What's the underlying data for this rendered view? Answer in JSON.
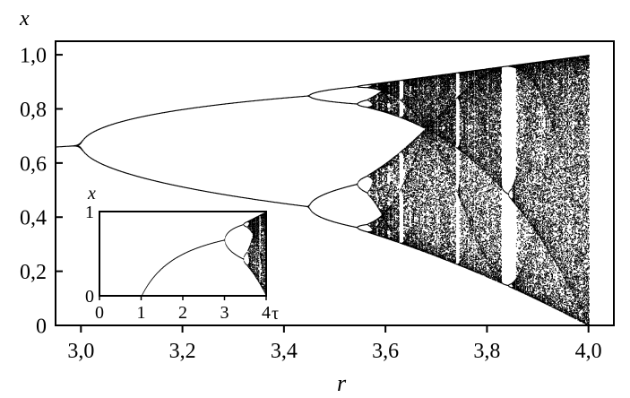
{
  "chart_data": [
    {
      "type": "scatter",
      "title": "",
      "xlabel": "r",
      "ylabel": "x",
      "xlim": [
        2.95,
        4.05
      ],
      "ylim": [
        0,
        1.05
      ],
      "xticks": [
        {
          "v": 3.0,
          "label": "3,0"
        },
        {
          "v": 3.2,
          "label": "3,2"
        },
        {
          "v": 3.4,
          "label": "3,4"
        },
        {
          "v": 3.6,
          "label": "3,6"
        },
        {
          "v": 3.8,
          "label": "3,8"
        },
        {
          "v": 4.0,
          "label": "4,0"
        }
      ],
      "yticks": [
        {
          "v": 0,
          "label": "0"
        },
        {
          "v": 0.2,
          "label": "0,2"
        },
        {
          "v": 0.4,
          "label": "0,4"
        },
        {
          "v": 0.6,
          "label": "0,6"
        },
        {
          "v": 0.8,
          "label": "0,8"
        },
        {
          "v": 1.0,
          "label": "1,0"
        }
      ],
      "description_points": {
        "fixed_point_branch": [
          [
            2.95,
            0.661
          ],
          [
            3.0,
            0.667
          ]
        ],
        "period2_upper": [
          [
            3.0,
            0.667
          ],
          [
            3.2,
            0.799
          ],
          [
            3.449,
            0.84
          ]
        ],
        "period2_lower": [
          [
            3.0,
            0.667
          ],
          [
            3.2,
            0.513
          ],
          [
            3.449,
            0.44
          ]
        ],
        "chaos_band": [
          [
            3.57,
            0.36,
            0.89
          ],
          [
            4.0,
            0.0,
            1.0
          ]
        ]
      },
      "grid": false
    },
    {
      "type": "scatter",
      "title": "",
      "xlabel": "τ",
      "ylabel": "x",
      "xlim": [
        0,
        4
      ],
      "ylim": [
        0,
        1
      ],
      "xticks": [
        {
          "v": 0,
          "label": "0"
        },
        {
          "v": 1,
          "label": "1"
        },
        {
          "v": 2,
          "label": "2"
        },
        {
          "v": 3,
          "label": "3"
        },
        {
          "v": 4,
          "label": "4"
        }
      ],
      "yticks": [
        {
          "v": 0,
          "label": "0"
        },
        {
          "v": 1,
          "label": "1"
        }
      ],
      "grid": false
    }
  ]
}
